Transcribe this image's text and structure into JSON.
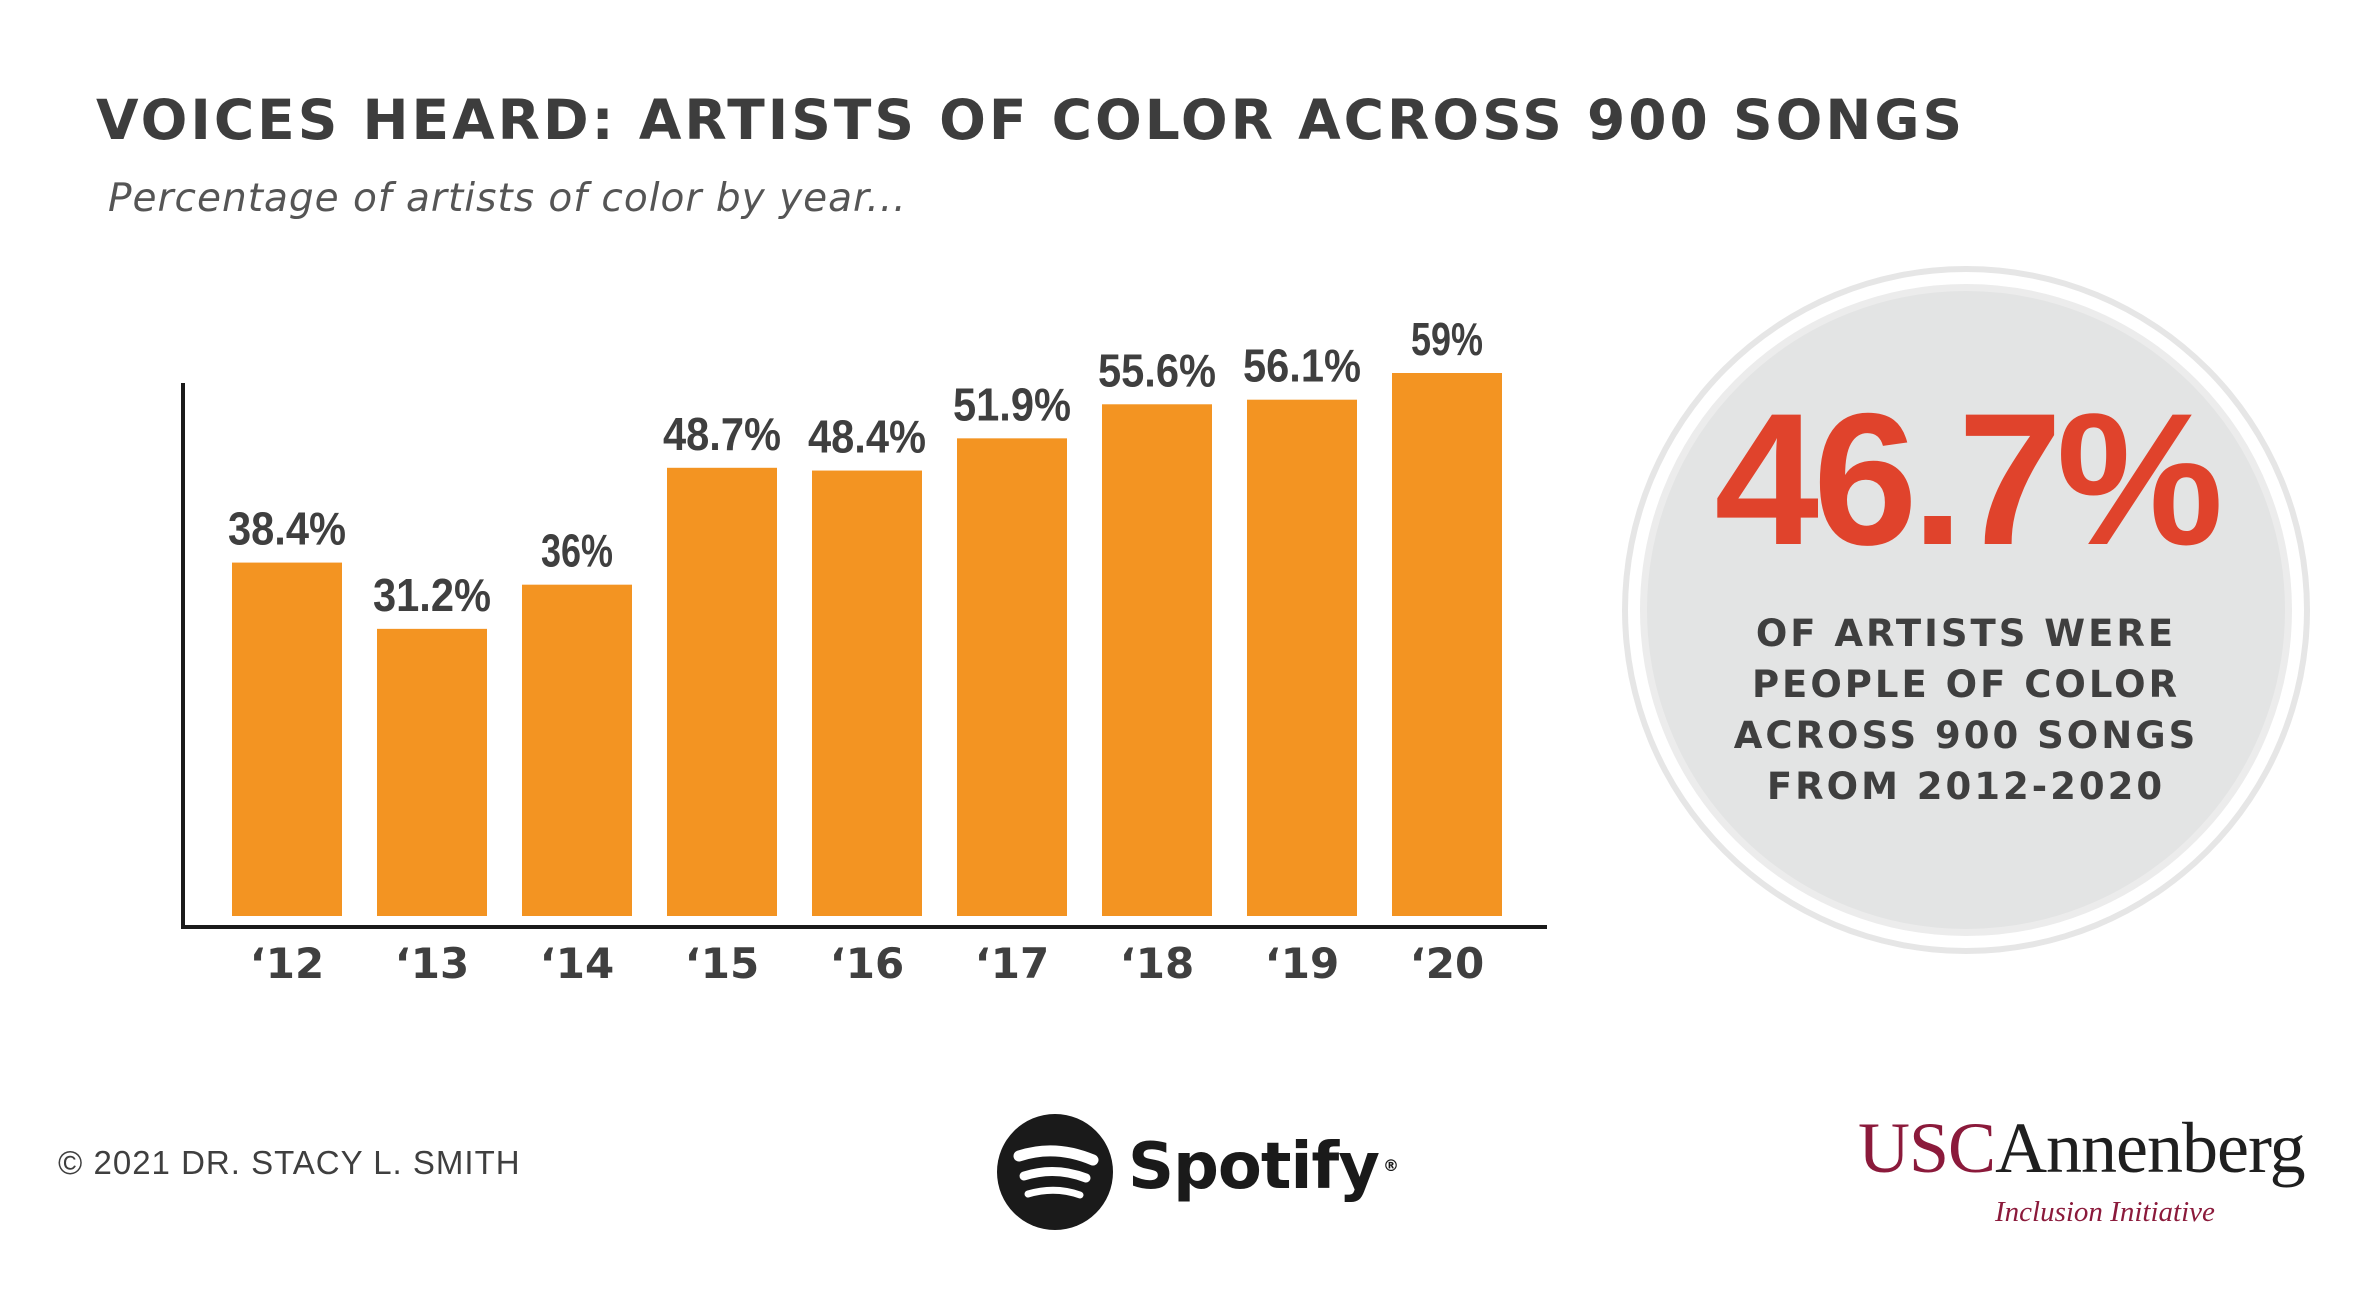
{
  "header": {
    "title": "VOICES HEARD: ARTISTS OF COLOR ACROSS 900 SONGS",
    "subtitle": "Percentage of artists of color by year..."
  },
  "chart_data": {
    "type": "bar",
    "title": "VOICES HEARD: ARTISTS OF COLOR ACROSS 900 SONGS",
    "subtitle": "Percentage of artists of color by year...",
    "categories": [
      "‘12",
      "‘13",
      "‘14",
      "‘15",
      "‘16",
      "‘17",
      "‘18",
      "‘19",
      "‘20"
    ],
    "values": [
      38.4,
      31.2,
      36,
      48.7,
      48.4,
      51.9,
      55.6,
      56.1,
      59
    ],
    "data_labels": [
      "38.4%",
      "31.2%",
      "36%",
      "48.7%",
      "48.4%",
      "51.9%",
      "55.6%",
      "56.1%",
      "59%"
    ],
    "xlabel": "",
    "ylabel": "",
    "ylim": [
      0,
      62
    ],
    "grid": false,
    "legend": "none",
    "bar_color": "#f39422"
  },
  "highlight": {
    "value": "46.7%",
    "caption": [
      "OF ARTISTS WERE",
      "PEOPLE OF COLOR",
      "ACROSS 900 SONGS",
      "FROM 2012-2020"
    ],
    "value_color": "#e0432c"
  },
  "footer": {
    "copyright": "© 2021 DR. STACY L. SMITH",
    "spotify": {
      "name": "Spotify",
      "icon": "spotify-logo-icon",
      "mark": "®"
    },
    "usc": {
      "usc": "USC",
      "annenberg": "Annenberg",
      "sub": "Inclusion Initiative",
      "color": "#8b1a3b"
    }
  }
}
